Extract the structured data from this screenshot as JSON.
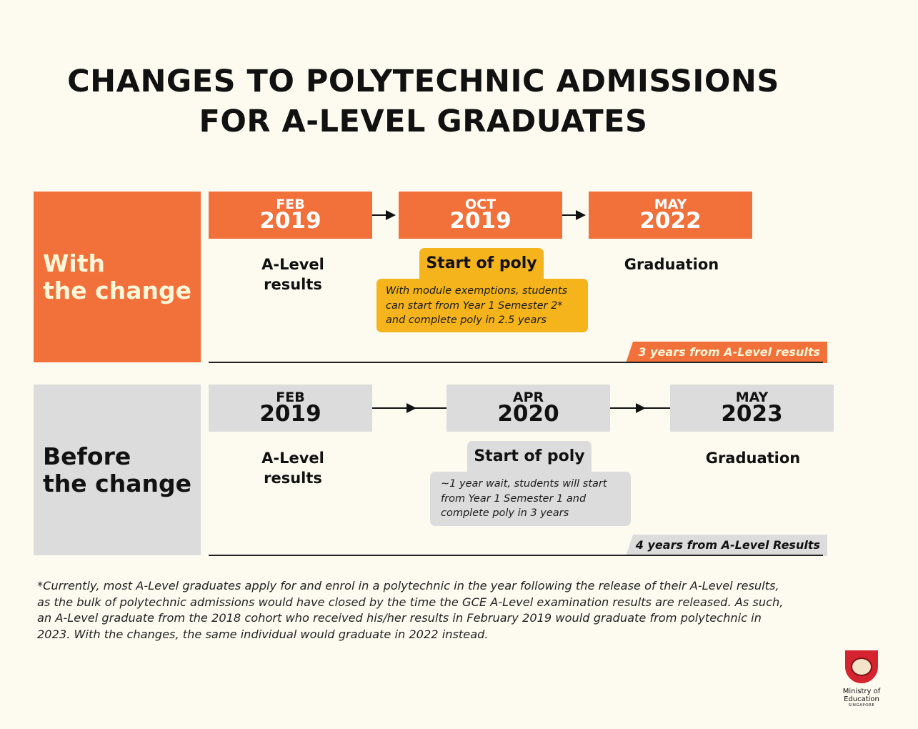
{
  "title": {
    "line1": "CHANGES TO POLYTECHNIC ADMISSIONS",
    "line2": "FOR A-LEVEL GRADUATES"
  },
  "with_change": {
    "label_line1": "With",
    "label_line2": "the change",
    "milestones": [
      {
        "month": "FEB",
        "year": "2019",
        "label_line1": "A-Level",
        "label_line2": "results"
      },
      {
        "month": "OCT",
        "year": "2019",
        "label_line1": "Start of poly"
      },
      {
        "month": "MAY",
        "year": "2022",
        "label_line1": "Graduation"
      }
    ],
    "note_lines": [
      "With module exemptions, students",
      "can start from Year 1 Semester 2*",
      "and complete poly in 2.5 years"
    ],
    "duration": "3 years from A-Level results"
  },
  "before_change": {
    "label_line1": "Before",
    "label_line2": "the change",
    "milestones": [
      {
        "month": "FEB",
        "year": "2019",
        "label_line1": "A-Level",
        "label_line2": "results"
      },
      {
        "month": "APR",
        "year": "2020",
        "label_line1": "Start of poly"
      },
      {
        "month": "MAY",
        "year": "2023",
        "label_line1": "Graduation"
      }
    ],
    "note_lines": [
      "~1 year wait, students will start",
      "from Year 1 Semester 1 and",
      "complete poly in 3 years"
    ],
    "duration": "4 years from A-Level Results"
  },
  "footnote_lines": [
    "*Currently, most A-Level graduates apply for and enrol in a polytechnic in the year following the release of their A-Level results,",
    "as the bulk of polytechnic admissions would have closed by the time the GCE A-Level examination results are released. As such,",
    "an A-Level graduate from the 2018 cohort who received his/her results in February 2019 would graduate from polytechnic in",
    "2023. With the changes, the same individual would graduate in 2022 instead."
  ],
  "logo": {
    "name": "Ministry of Education",
    "sub": "SINGAPORE",
    "icon": "moe-crest-icon"
  },
  "colors": {
    "orange": "#f2703a",
    "yellow": "#f6b41c",
    "grey": "#dcdcdc",
    "background": "#fdfbf0"
  }
}
